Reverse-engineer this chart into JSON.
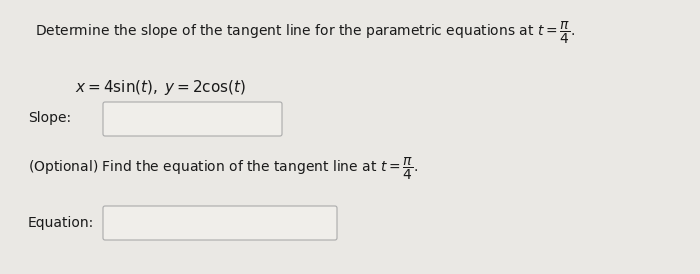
{
  "bg_color": "#eae8e4",
  "text_color": "#1a1a1a",
  "slope_label": "Slope:",
  "equation_label": "Equation:",
  "title_text": "Determine the slope of the tangent line for the parametric equations at $t = \\dfrac{\\pi}{4}$.",
  "eq_text": "$x = 4\\sin(t),\\; y = 2\\cos(t)$",
  "optional_text": "(Optional) Find the equation of the tangent line at $t = \\dfrac{\\pi}{4}$.",
  "box_facecolor": "#f0eeea",
  "box_edgecolor": "#aaaaaa",
  "title_fontsize": 10.0,
  "eq_fontsize": 11.0,
  "label_fontsize": 10.0
}
